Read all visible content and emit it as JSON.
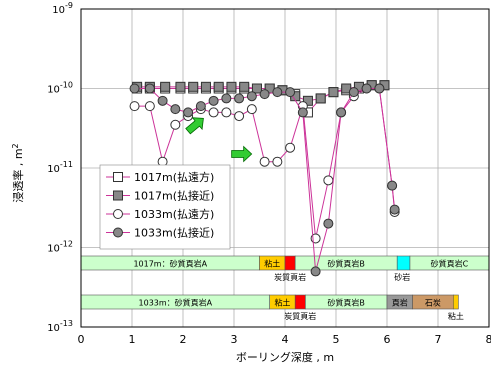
{
  "chart_data": {
    "type": "scatter",
    "xlabel": "ボーリング深度 , m",
    "ylabel": "浸透率 , m",
    "ylabel_sup": "2",
    "xlim": [
      0,
      8
    ],
    "ylim": [
      1e-13,
      1e-09
    ],
    "y_scale": "log",
    "x_ticks": [
      "0",
      "1",
      "2",
      "3",
      "4",
      "5",
      "6",
      "7",
      "8"
    ],
    "y_ticks": [
      {
        "base": "10",
        "exp": "-9",
        "value": 1e-09
      },
      {
        "base": "10",
        "exp": "-10",
        "value": 1e-10
      },
      {
        "base": "10",
        "exp": "-11",
        "value": 1e-11
      },
      {
        "base": "10",
        "exp": "-12",
        "value": 1e-12
      },
      {
        "base": "10",
        "exp": "-13",
        "value": 1e-13
      }
    ],
    "grid": true,
    "legend_position": "left-middle",
    "series": [
      {
        "name": "1017m(払遠方)",
        "marker": "square-open",
        "line_color": "#cc3399",
        "fill": "#ffffff",
        "x": [
          1.1,
          1.35,
          1.65,
          1.95,
          2.2,
          2.45,
          2.7,
          2.95,
          3.2,
          3.45,
          3.7,
          3.95,
          4.2,
          4.45,
          4.7,
          4.95,
          5.2,
          5.45,
          5.7,
          5.95
        ],
        "y": [
          1e-10,
          1e-10,
          1e-10,
          1e-10,
          1e-10,
          1e-10,
          1e-10,
          1e-10,
          1e-10,
          1e-10,
          1e-10,
          9.5e-11,
          8.5e-11,
          5e-11,
          7.5e-11,
          9e-11,
          9.5e-11,
          1e-10,
          1.1e-10,
          1.1e-10
        ]
      },
      {
        "name": "1017m(払接近)",
        "marker": "square-filled",
        "line_color": "#cc3399",
        "fill": "#888888",
        "x": [
          1.1,
          1.35,
          1.65,
          1.95,
          2.2,
          2.45,
          2.7,
          2.95,
          3.2,
          3.45,
          3.7,
          3.95,
          4.2,
          4.45,
          4.7,
          4.95,
          5.2,
          5.45,
          5.7,
          5.95
        ],
        "y": [
          1.05e-10,
          1.05e-10,
          1.05e-10,
          1.05e-10,
          1.05e-10,
          1.05e-10,
          1.05e-10,
          1.05e-10,
          1.05e-10,
          1e-10,
          1e-10,
          9.5e-11,
          8e-11,
          7e-11,
          7.5e-11,
          9e-11,
          1e-10,
          1.05e-10,
          1.1e-10,
          1.1e-10
        ]
      },
      {
        "name": "1033m(払遠方)",
        "marker": "circle-open",
        "line_color": "#cc3399",
        "fill": "#ffffff",
        "x": [
          1.05,
          1.35,
          1.6,
          1.85,
          2.1,
          2.35,
          2.6,
          2.85,
          3.1,
          3.35,
          3.6,
          3.85,
          4.1,
          4.35,
          4.6,
          4.85,
          5.1,
          5.35,
          5.6,
          5.85,
          6.1,
          6.15
        ],
        "y": [
          6e-11,
          6e-11,
          1.2e-11,
          3.5e-11,
          4.5e-11,
          5.5e-11,
          5e-11,
          5e-11,
          4.5e-11,
          5.5e-11,
          1.2e-11,
          1.2e-11,
          1.8e-11,
          6e-11,
          1.3e-12,
          7e-12,
          5e-11,
          8e-11,
          1e-10,
          1e-10,
          6e-12,
          2.8e-12
        ]
      },
      {
        "name": "1033m(払接近)",
        "marker": "circle-filled",
        "line_color": "#cc3399",
        "fill": "#888888",
        "x": [
          1.05,
          1.35,
          1.6,
          1.85,
          2.1,
          2.35,
          2.6,
          2.85,
          3.1,
          3.35,
          3.6,
          3.85,
          4.1,
          4.35,
          4.6,
          4.85,
          5.1,
          5.35,
          5.6,
          5.85,
          6.1,
          6.15
        ],
        "y": [
          1e-10,
          1e-10,
          7e-11,
          5.5e-11,
          5e-11,
          6e-11,
          7e-11,
          7.5e-11,
          7.5e-11,
          8e-11,
          8.5e-11,
          9e-11,
          9e-11,
          5e-11,
          5e-13,
          2e-12,
          5e-11,
          9e-11,
          1e-10,
          1e-10,
          6e-12,
          3e-12
        ]
      }
    ],
    "arrows": [
      {
        "x": 2.25,
        "y": 3.5e-11,
        "direction": "up-right",
        "color": "#33cc33"
      },
      {
        "x": 3.15,
        "y": 1.5e-11,
        "direction": "right",
        "color": "#33cc33"
      }
    ],
    "strata": [
      {
        "name": "1017m",
        "segments": [
          {
            "start": 0.0,
            "end": 3.5,
            "label": "1017m：砂質頁岩A",
            "color": "#ccffcc"
          },
          {
            "start": 3.5,
            "end": 4.0,
            "label": "粘土",
            "color": "#ffcc00"
          },
          {
            "start": 4.0,
            "end": 4.2,
            "label": "",
            "color": "#ff0000"
          },
          {
            "start": 4.2,
            "end": 6.2,
            "label": "砂質頁岩B",
            "color": "#ccffcc"
          },
          {
            "start": 6.2,
            "end": 6.45,
            "label": "",
            "color": "#00ffff"
          },
          {
            "start": 6.45,
            "end": 8.0,
            "label": "砂質頁岩C",
            "color": "#ccffcc"
          }
        ],
        "below_labels": [
          {
            "x": 4.1,
            "text": "炭質頁岩"
          },
          {
            "x": 6.3,
            "text": "砂岩"
          }
        ]
      },
      {
        "name": "1033m",
        "segments": [
          {
            "start": 0.0,
            "end": 3.7,
            "label": "1033m：砂質頁岩A",
            "color": "#ccffcc"
          },
          {
            "start": 3.7,
            "end": 4.2,
            "label": "粘土",
            "color": "#ffcc00"
          },
          {
            "start": 4.2,
            "end": 4.4,
            "label": "",
            "color": "#ff0000"
          },
          {
            "start": 4.4,
            "end": 6.0,
            "label": "砂質頁岩B",
            "color": "#ccffcc"
          },
          {
            "start": 6.0,
            "end": 6.5,
            "label": "頁岩",
            "color": "#999999"
          },
          {
            "start": 6.5,
            "end": 7.3,
            "label": "石炭",
            "color": "#cc9966"
          },
          {
            "start": 7.3,
            "end": 7.4,
            "label": "",
            "color": "#ffcc00"
          }
        ],
        "below_labels": [
          {
            "x": 4.3,
            "text": "炭質頁岩"
          },
          {
            "x": 7.35,
            "text": "粘土"
          }
        ]
      }
    ]
  }
}
